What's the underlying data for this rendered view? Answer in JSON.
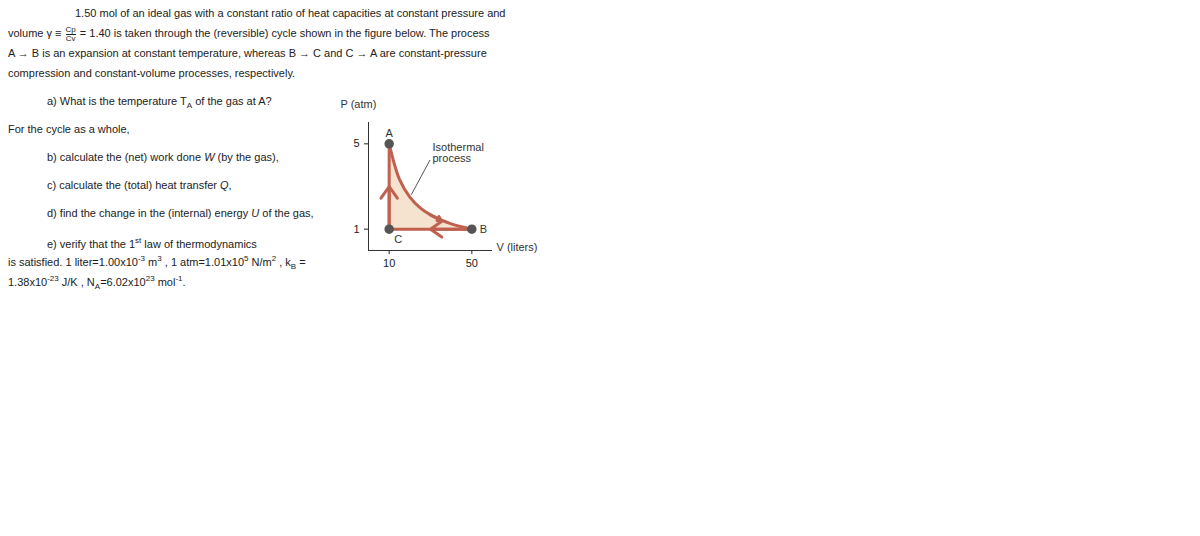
{
  "problem": {
    "lines": [
      [
        "1.50 mol of an ideal gas with a constant ratio of heat capacities at constant pressure and"
      ],
      [
        "volume γ ≡ ",
        {
          "frac": [
            "Cp",
            "Cv"
          ]
        },
        " = 1.40 is taken through the (reversible) cycle shown in the figure below. The process"
      ],
      [
        "A → B is an expansion at constant temperature, whereas B → C and C → A are constant-pressure"
      ],
      [
        "compression and constant-volume processes, respectively."
      ],
      [
        "a) What is the temperature T",
        {
          "sub": "A"
        },
        " of the gas at A?"
      ],
      [
        "For the cycle as a whole,"
      ],
      [
        "b) calculate the (net) work done ",
        {
          "i": "W"
        },
        " (by the gas),"
      ],
      [
        "c) calculate the (total) heat transfer ",
        {
          "i": "Q"
        },
        ","
      ],
      [
        "d) find the change in the (internal) energy ",
        {
          "i": "U"
        },
        " of the gas,"
      ],
      [
        "e) verify that the 1",
        {
          "sup": "st"
        },
        " law of thermodynamics"
      ],
      [
        "is satisfied. 1 liter=1.00x10",
        {
          "sup": "-3"
        },
        " m",
        {
          "sup": "3"
        },
        " , 1 atm=1.01x10",
        {
          "sup": "5"
        },
        " N/m",
        {
          "sup": "2"
        },
        " , k",
        {
          "sub": "B"
        },
        " ="
      ],
      [
        "1.38x10",
        {
          "sup": "-23"
        },
        " J/K , N",
        {
          "sub": "A"
        },
        "=6.02x10",
        {
          "sup": "23"
        },
        " mol",
        {
          "sup": "-1"
        },
        "."
      ]
    ]
  },
  "chart_data": {
    "type": "line",
    "ylabel": "P (atm)",
    "xlabel": "V (liters)",
    "xlim": [
      0,
      60
    ],
    "ylim": [
      0,
      6
    ],
    "xticks": [
      10,
      50
    ],
    "yticks": [
      1,
      5
    ],
    "color": "#c0614f",
    "fill": "#f6e3cf",
    "points": [
      {
        "label": "A",
        "x": 10,
        "y": 5
      },
      {
        "label": "B",
        "x": 50,
        "y": 1
      },
      {
        "label": "C",
        "x": 10,
        "y": 1
      }
    ],
    "isotherm": {
      "x": [
        10,
        15,
        20,
        25,
        30,
        35,
        40,
        45,
        50
      ],
      "y": [
        5,
        3.33,
        2.5,
        2,
        1.67,
        1.43,
        1.25,
        1.11,
        1
      ]
    },
    "annotation": [
      "Isothermal",
      "process"
    ]
  }
}
